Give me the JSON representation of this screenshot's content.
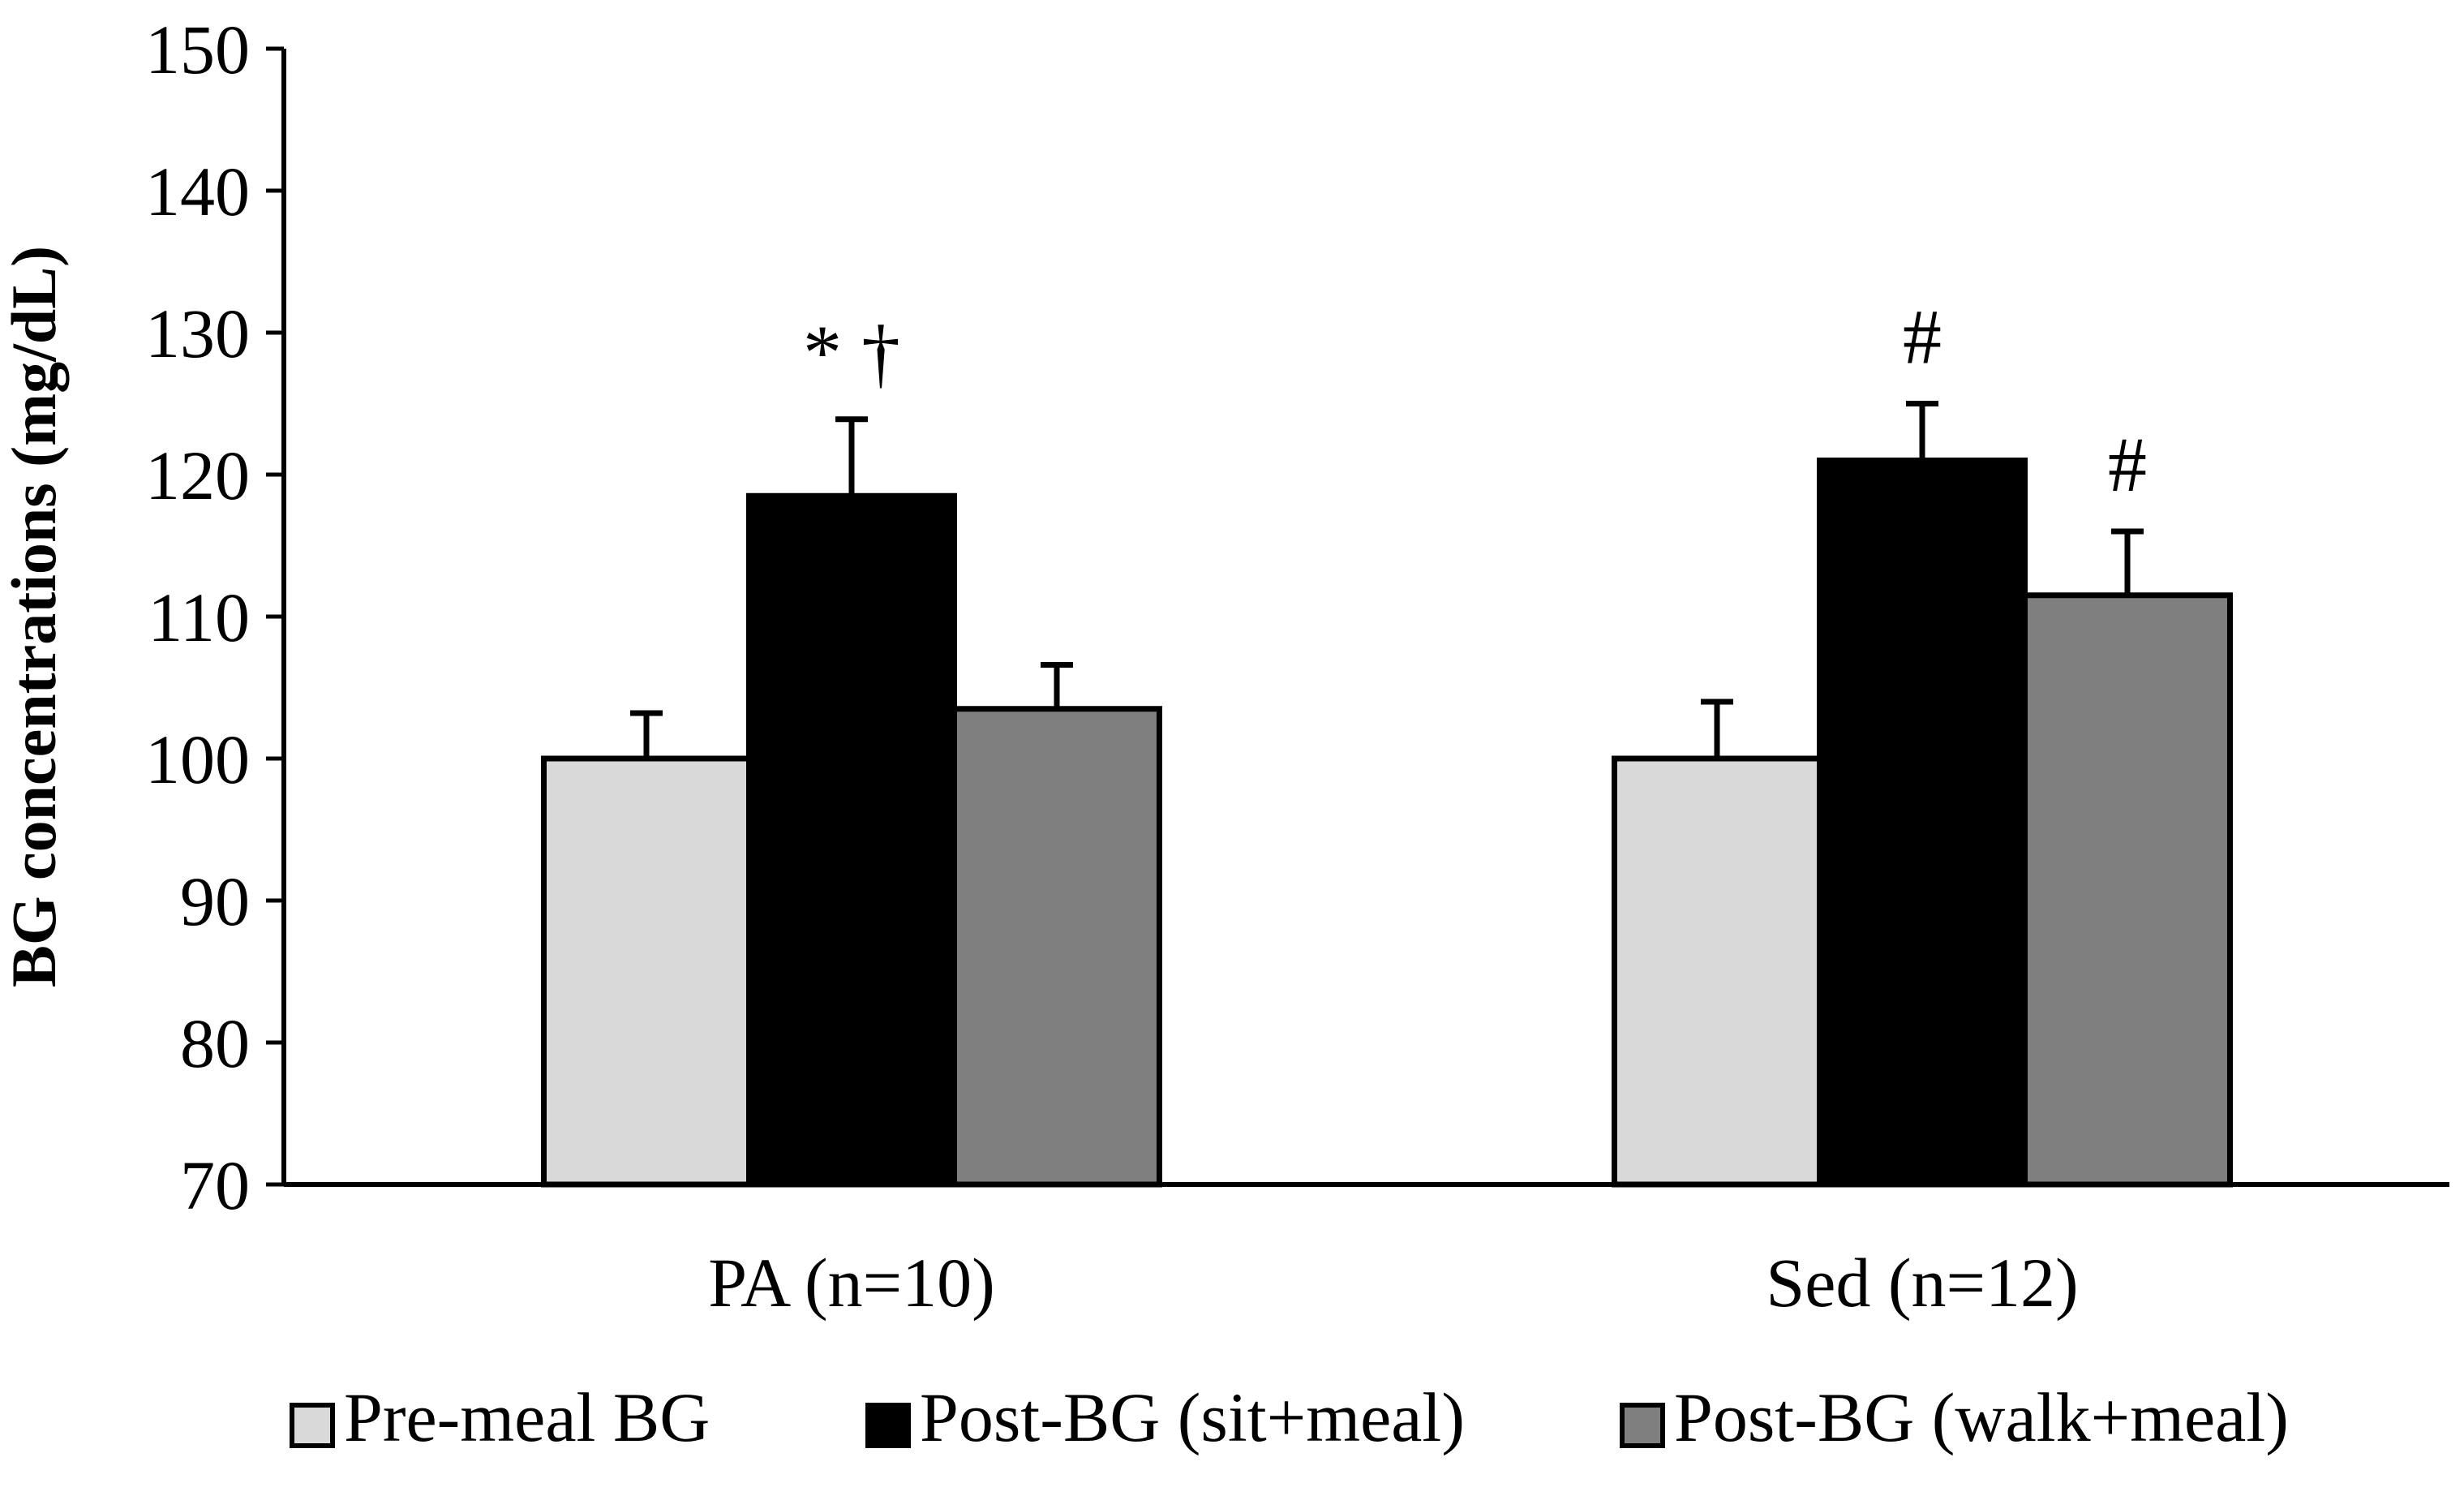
{
  "chart_data": {
    "type": "bar",
    "title": "",
    "xlabel": "",
    "ylabel": "BG concentrations (mg/dL)",
    "ylim": [
      70,
      150
    ],
    "yticks": [
      70,
      80,
      90,
      100,
      110,
      120,
      130,
      140,
      150
    ],
    "grid": false,
    "legend_position": "bottom",
    "categories": [
      "PA (n=10)",
      "Sed (n=12)"
    ],
    "series": [
      {
        "name": "Pre-meal BG",
        "color": "#d9d9d9",
        "values": [
          100,
          100
        ],
        "errors": [
          3.2,
          4.0
        ]
      },
      {
        "name": "Post-BG (sit+meal)",
        "color": "#000000",
        "values": [
          118.5,
          121
        ],
        "errors": [
          5.4,
          4.0
        ]
      },
      {
        "name": "Post-BG (walk+meal)",
        "color": "#7f7f7f",
        "values": [
          103.5,
          111.5
        ],
        "errors": [
          3.1,
          4.5
        ]
      }
    ],
    "annotations": [
      {
        "category_index": 0,
        "series_index": 1,
        "text": "* †"
      },
      {
        "category_index": 1,
        "series_index": 1,
        "text": "#"
      },
      {
        "category_index": 1,
        "series_index": 2,
        "text": "#"
      }
    ]
  }
}
